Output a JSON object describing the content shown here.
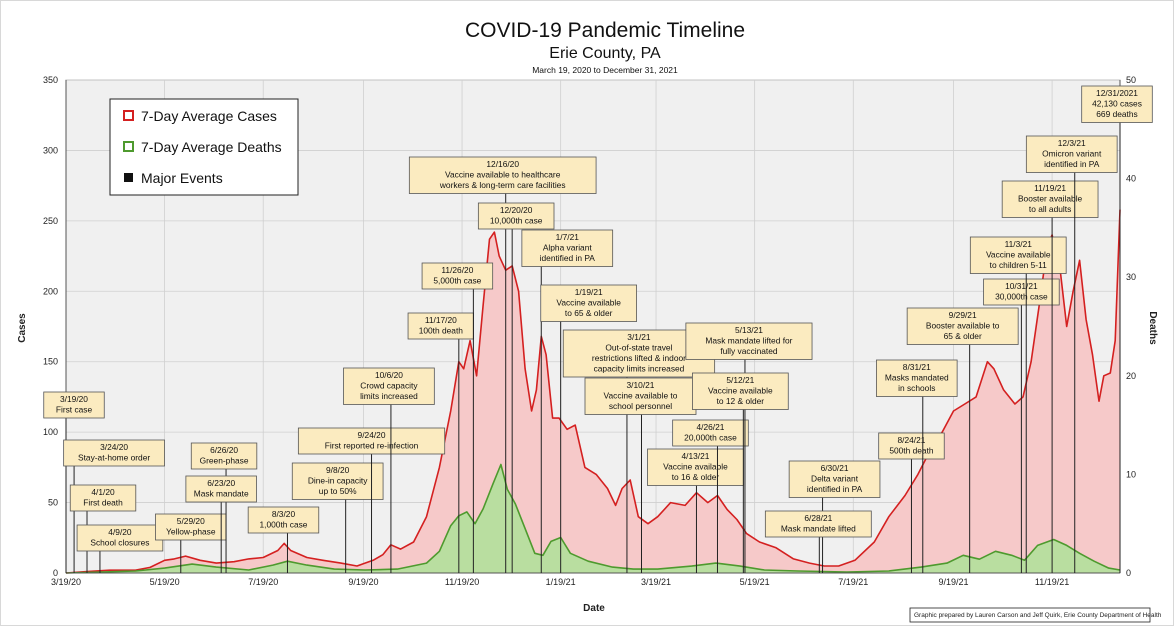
{
  "chart_data": {
    "type": "area",
    "title": "COVID-19 Pandemic Timeline",
    "subtitle": "Erie County, PA",
    "date_range": "March 19, 2020 to December 31, 2021",
    "xlabel": "Date",
    "ylabel_left": "Cases",
    "ylabel_right": "Deaths",
    "ylim_left": [
      0,
      350
    ],
    "ylim_right": [
      0,
      50
    ],
    "yticks_left": [
      "0",
      "50",
      "100",
      "150",
      "200",
      "250",
      "300",
      "350"
    ],
    "yticks_right": [
      "0",
      "10",
      "20",
      "30",
      "40",
      "50"
    ],
    "x_range": [
      "2020-03-19",
      "2021-12-31"
    ],
    "xticks": [
      {
        "date": "2020-03-19",
        "label": "3/19/20"
      },
      {
        "date": "2020-05-19",
        "label": "5/19/20"
      },
      {
        "date": "2020-07-19",
        "label": "7/19/20"
      },
      {
        "date": "2020-09-19",
        "label": "9/19/20"
      },
      {
        "date": "2020-11-19",
        "label": "11/19/20"
      },
      {
        "date": "2021-01-19",
        "label": "1/19/21"
      },
      {
        "date": "2021-03-19",
        "label": "3/19/21"
      },
      {
        "date": "2021-05-19",
        "label": "5/19/21"
      },
      {
        "date": "2021-07-19",
        "label": "7/19/21"
      },
      {
        "date": "2021-09-19",
        "label": "9/19/21"
      },
      {
        "date": "2021-11-19",
        "label": "11/19/21"
      }
    ],
    "grid": true,
    "legend_position": "top-left",
    "legend": [
      {
        "label": "7-Day Average Cases",
        "color": "#d42020",
        "marker": "hollow-square"
      },
      {
        "label": "7-Day Average Deaths",
        "color": "#4e9a2e",
        "marker": "hollow-square"
      },
      {
        "label": "Major Events",
        "color": "#111111",
        "marker": "filled-square"
      }
    ],
    "colors": {
      "cases_line": "#d42020",
      "cases_fill": "#f6c9c9",
      "deaths_line": "#4e9a2e",
      "deaths_fill": "#b9dea0",
      "event_line": "#222222",
      "box_fill": "#fbebc0",
      "box_border": "#555555"
    },
    "series": [
      {
        "name": "7-Day Average Cases",
        "axis": "left",
        "points": [
          [
            "2020-03-19",
            0
          ],
          [
            "2020-04-01",
            1
          ],
          [
            "2020-04-15",
            2
          ],
          [
            "2020-05-01",
            2
          ],
          [
            "2020-05-10",
            4
          ],
          [
            "2020-05-19",
            9
          ],
          [
            "2020-05-25",
            10
          ],
          [
            "2020-06-01",
            12
          ],
          [
            "2020-06-10",
            9
          ],
          [
            "2020-06-20",
            7
          ],
          [
            "2020-07-01",
            8
          ],
          [
            "2020-07-10",
            10
          ],
          [
            "2020-07-19",
            11
          ],
          [
            "2020-07-28",
            16
          ],
          [
            "2020-08-01",
            21
          ],
          [
            "2020-08-05",
            16
          ],
          [
            "2020-08-15",
            11
          ],
          [
            "2020-08-25",
            9
          ],
          [
            "2020-09-05",
            7
          ],
          [
            "2020-09-15",
            5
          ],
          [
            "2020-09-25",
            9
          ],
          [
            "2020-10-01",
            13
          ],
          [
            "2020-10-06",
            20
          ],
          [
            "2020-10-12",
            17
          ],
          [
            "2020-10-20",
            22
          ],
          [
            "2020-10-28",
            40
          ],
          [
            "2020-11-05",
            75
          ],
          [
            "2020-11-12",
            115
          ],
          [
            "2020-11-17",
            150
          ],
          [
            "2020-11-20",
            145
          ],
          [
            "2020-11-24",
            165
          ],
          [
            "2020-11-28",
            140
          ],
          [
            "2020-12-02",
            190
          ],
          [
            "2020-12-06",
            237
          ],
          [
            "2020-12-09",
            242
          ],
          [
            "2020-12-12",
            225
          ],
          [
            "2020-12-16",
            215
          ],
          [
            "2020-12-20",
            218
          ],
          [
            "2020-12-24",
            200
          ],
          [
            "2020-12-28",
            145
          ],
          [
            "2021-01-01",
            115
          ],
          [
            "2021-01-04",
            130
          ],
          [
            "2021-01-07",
            168
          ],
          [
            "2021-01-10",
            155
          ],
          [
            "2021-01-14",
            110
          ],
          [
            "2021-01-18",
            110
          ],
          [
            "2021-01-23",
            102
          ],
          [
            "2021-01-28",
            105
          ],
          [
            "2021-02-03",
            75
          ],
          [
            "2021-02-10",
            70
          ],
          [
            "2021-02-17",
            60
          ],
          [
            "2021-02-22",
            48
          ],
          [
            "2021-02-26",
            60
          ],
          [
            "2021-03-03",
            66
          ],
          [
            "2021-03-08",
            40
          ],
          [
            "2021-03-14",
            35
          ],
          [
            "2021-03-20",
            40
          ],
          [
            "2021-03-28",
            50
          ],
          [
            "2021-04-06",
            48
          ],
          [
            "2021-04-13",
            57
          ],
          [
            "2021-04-20",
            50
          ],
          [
            "2021-04-26",
            55
          ],
          [
            "2021-05-02",
            45
          ],
          [
            "2021-05-08",
            38
          ],
          [
            "2021-05-14",
            28
          ],
          [
            "2021-05-22",
            22
          ],
          [
            "2021-06-01",
            18
          ],
          [
            "2021-06-12",
            10
          ],
          [
            "2021-06-22",
            7
          ],
          [
            "2021-07-01",
            5
          ],
          [
            "2021-07-10",
            5
          ],
          [
            "2021-07-20",
            9
          ],
          [
            "2021-08-01",
            22
          ],
          [
            "2021-08-10",
            40
          ],
          [
            "2021-08-20",
            55
          ],
          [
            "2021-08-28",
            70
          ],
          [
            "2021-09-05",
            88
          ],
          [
            "2021-09-12",
            100
          ],
          [
            "2021-09-19",
            115
          ],
          [
            "2021-09-26",
            120
          ],
          [
            "2021-10-03",
            125
          ],
          [
            "2021-10-10",
            150
          ],
          [
            "2021-10-14",
            145
          ],
          [
            "2021-10-20",
            130
          ],
          [
            "2021-10-27",
            120
          ],
          [
            "2021-11-01",
            125
          ],
          [
            "2021-11-06",
            150
          ],
          [
            "2021-11-11",
            190
          ],
          [
            "2021-11-16",
            232
          ],
          [
            "2021-11-19",
            240
          ],
          [
            "2021-11-24",
            215
          ],
          [
            "2021-11-28",
            175
          ],
          [
            "2021-12-02",
            200
          ],
          [
            "2021-12-06",
            222
          ],
          [
            "2021-12-10",
            180
          ],
          [
            "2021-12-14",
            155
          ],
          [
            "2021-12-18",
            122
          ],
          [
            "2021-12-21",
            140
          ],
          [
            "2021-12-25",
            142
          ],
          [
            "2021-12-28",
            165
          ],
          [
            "2021-12-31",
            258
          ]
        ]
      },
      {
        "name": "7-Day Average Deaths",
        "axis": "right",
        "points": [
          [
            "2020-03-19",
            0
          ],
          [
            "2020-04-10",
            0.1
          ],
          [
            "2020-05-01",
            0.2
          ],
          [
            "2020-05-19",
            0.5
          ],
          [
            "2020-06-05",
            0.9
          ],
          [
            "2020-06-20",
            0.6
          ],
          [
            "2020-07-10",
            0.3
          ],
          [
            "2020-07-25",
            0.8
          ],
          [
            "2020-08-03",
            1.2
          ],
          [
            "2020-08-15",
            0.8
          ],
          [
            "2020-09-01",
            0.4
          ],
          [
            "2020-09-20",
            0.3
          ],
          [
            "2020-10-10",
            0.4
          ],
          [
            "2020-10-28",
            1.0
          ],
          [
            "2020-11-05",
            2.2
          ],
          [
            "2020-11-12",
            4.8
          ],
          [
            "2020-11-17",
            5.8
          ],
          [
            "2020-11-22",
            6.2
          ],
          [
            "2020-11-27",
            5.0
          ],
          [
            "2020-12-02",
            6.5
          ],
          [
            "2020-12-08",
            9.0
          ],
          [
            "2020-12-13",
            11.0
          ],
          [
            "2020-12-17",
            8.5
          ],
          [
            "2020-12-22",
            7.0
          ],
          [
            "2020-12-28",
            4.5
          ],
          [
            "2021-01-03",
            2.0
          ],
          [
            "2021-01-08",
            1.8
          ],
          [
            "2021-01-13",
            3.2
          ],
          [
            "2021-01-19",
            3.6
          ],
          [
            "2021-01-25",
            2.0
          ],
          [
            "2021-02-05",
            1.2
          ],
          [
            "2021-02-20",
            0.6
          ],
          [
            "2021-03-05",
            0.4
          ],
          [
            "2021-03-20",
            0.4
          ],
          [
            "2021-04-10",
            0.7
          ],
          [
            "2021-04-25",
            1.0
          ],
          [
            "2021-05-10",
            0.7
          ],
          [
            "2021-05-25",
            0.3
          ],
          [
            "2021-06-15",
            0.2
          ],
          [
            "2021-07-15",
            0.1
          ],
          [
            "2021-08-10",
            0.2
          ],
          [
            "2021-08-30",
            0.6
          ],
          [
            "2021-09-15",
            1.0
          ],
          [
            "2021-09-25",
            1.8
          ],
          [
            "2021-10-05",
            1.4
          ],
          [
            "2021-10-15",
            2.2
          ],
          [
            "2021-10-25",
            1.8
          ],
          [
            "2021-11-02",
            1.3
          ],
          [
            "2021-11-10",
            2.8
          ],
          [
            "2021-11-20",
            3.4
          ],
          [
            "2021-11-28",
            2.8
          ],
          [
            "2021-12-06",
            2.0
          ],
          [
            "2021-12-15",
            1.2
          ],
          [
            "2021-12-24",
            0.5
          ],
          [
            "2021-12-31",
            0.3
          ]
        ]
      }
    ],
    "events": [
      {
        "date": "2020-03-19",
        "lines": [
          "3/19/20",
          "First case"
        ]
      },
      {
        "date": "2020-03-24",
        "lines": [
          "3/24/20",
          "Stay-at-home order"
        ]
      },
      {
        "date": "2020-04-01",
        "lines": [
          "4/1/20",
          "First death"
        ]
      },
      {
        "date": "2020-04-09",
        "lines": [
          "4/9/20",
          "School closures"
        ]
      },
      {
        "date": "2020-05-29",
        "lines": [
          "5/29/20",
          "Yellow-phase"
        ]
      },
      {
        "date": "2020-06-26",
        "lines": [
          "6/26/20",
          "Green-phase"
        ]
      },
      {
        "date": "2020-06-23",
        "lines": [
          "6/23/20",
          "Mask mandate"
        ]
      },
      {
        "date": "2020-08-03",
        "lines": [
          "8/3/20",
          "1,000th case"
        ]
      },
      {
        "date": "2020-09-08",
        "lines": [
          "9/8/20",
          "Dine-in capacity",
          "up to 50%"
        ]
      },
      {
        "date": "2020-09-24",
        "lines": [
          "9/24/20",
          "First reported re-infection"
        ]
      },
      {
        "date": "2020-10-06",
        "lines": [
          "10/6/20",
          "Crowd capacity",
          "limits increased"
        ]
      },
      {
        "date": "2020-11-17",
        "lines": [
          "11/17/20",
          "100th death"
        ]
      },
      {
        "date": "2020-11-26",
        "lines": [
          "11/26/20",
          "5,000th case"
        ]
      },
      {
        "date": "2020-12-16",
        "lines": [
          "12/16/20",
          "Vaccine available to healthcare",
          "workers & long-term care facilities"
        ]
      },
      {
        "date": "2020-12-20",
        "lines": [
          "12/20/20",
          "10,000th case"
        ]
      },
      {
        "date": "2021-01-07",
        "lines": [
          "1/7/21",
          "Alpha variant",
          "identified in PA"
        ]
      },
      {
        "date": "2021-01-19",
        "lines": [
          "1/19/21",
          "Vaccine available",
          "to 65 & older"
        ]
      },
      {
        "date": "2021-03-01",
        "lines": [
          "3/1/21",
          "Out-of-state travel",
          "restrictions lifted & indoor",
          "capacity limits increased"
        ]
      },
      {
        "date": "2021-03-10",
        "lines": [
          "3/10/21",
          "Vaccine available to",
          "school personnel"
        ]
      },
      {
        "date": "2021-04-13",
        "lines": [
          "4/13/21",
          "Vaccine available",
          "to 16 & older"
        ]
      },
      {
        "date": "2021-04-26",
        "lines": [
          "4/26/21",
          "20,000th case"
        ]
      },
      {
        "date": "2021-05-13",
        "lines": [
          "5/13/21",
          "Mask mandate lifted for",
          "fully vaccinated"
        ]
      },
      {
        "date": "2021-05-12",
        "lines": [
          "5/12/21",
          "Vaccine available",
          "to 12 & older"
        ]
      },
      {
        "date": "2021-06-30",
        "lines": [
          "6/30/21",
          "Delta variant",
          "identified in PA"
        ]
      },
      {
        "date": "2021-06-28",
        "lines": [
          "6/28/21",
          "Mask mandate lifted"
        ]
      },
      {
        "date": "2021-08-24",
        "lines": [
          "8/24/21",
          "500th death"
        ]
      },
      {
        "date": "2021-08-31",
        "lines": [
          "8/31/21",
          "Masks mandated",
          "in schools"
        ]
      },
      {
        "date": "2021-09-29",
        "lines": [
          "9/29/21",
          "Booster available to",
          "65 & older"
        ]
      },
      {
        "date": "2021-10-31",
        "lines": [
          "10/31/21",
          "30,000th case"
        ]
      },
      {
        "date": "2021-11-03",
        "lines": [
          "11/3/21",
          "Vaccine available",
          "to children 5-11"
        ]
      },
      {
        "date": "2021-11-19",
        "lines": [
          "11/19/21",
          "Booster available",
          "to all adults"
        ]
      },
      {
        "date": "2021-12-03",
        "lines": [
          "12/3/21",
          "Omicron variant",
          "identified in PA"
        ]
      },
      {
        "date": "2021-12-31",
        "lines": [
          "12/31/2021",
          "42,130 cases",
          "669 deaths"
        ]
      }
    ],
    "credit": "Graphic prepared by Lauren Carson and Jeff Quirk, Erie County Department of Health"
  }
}
